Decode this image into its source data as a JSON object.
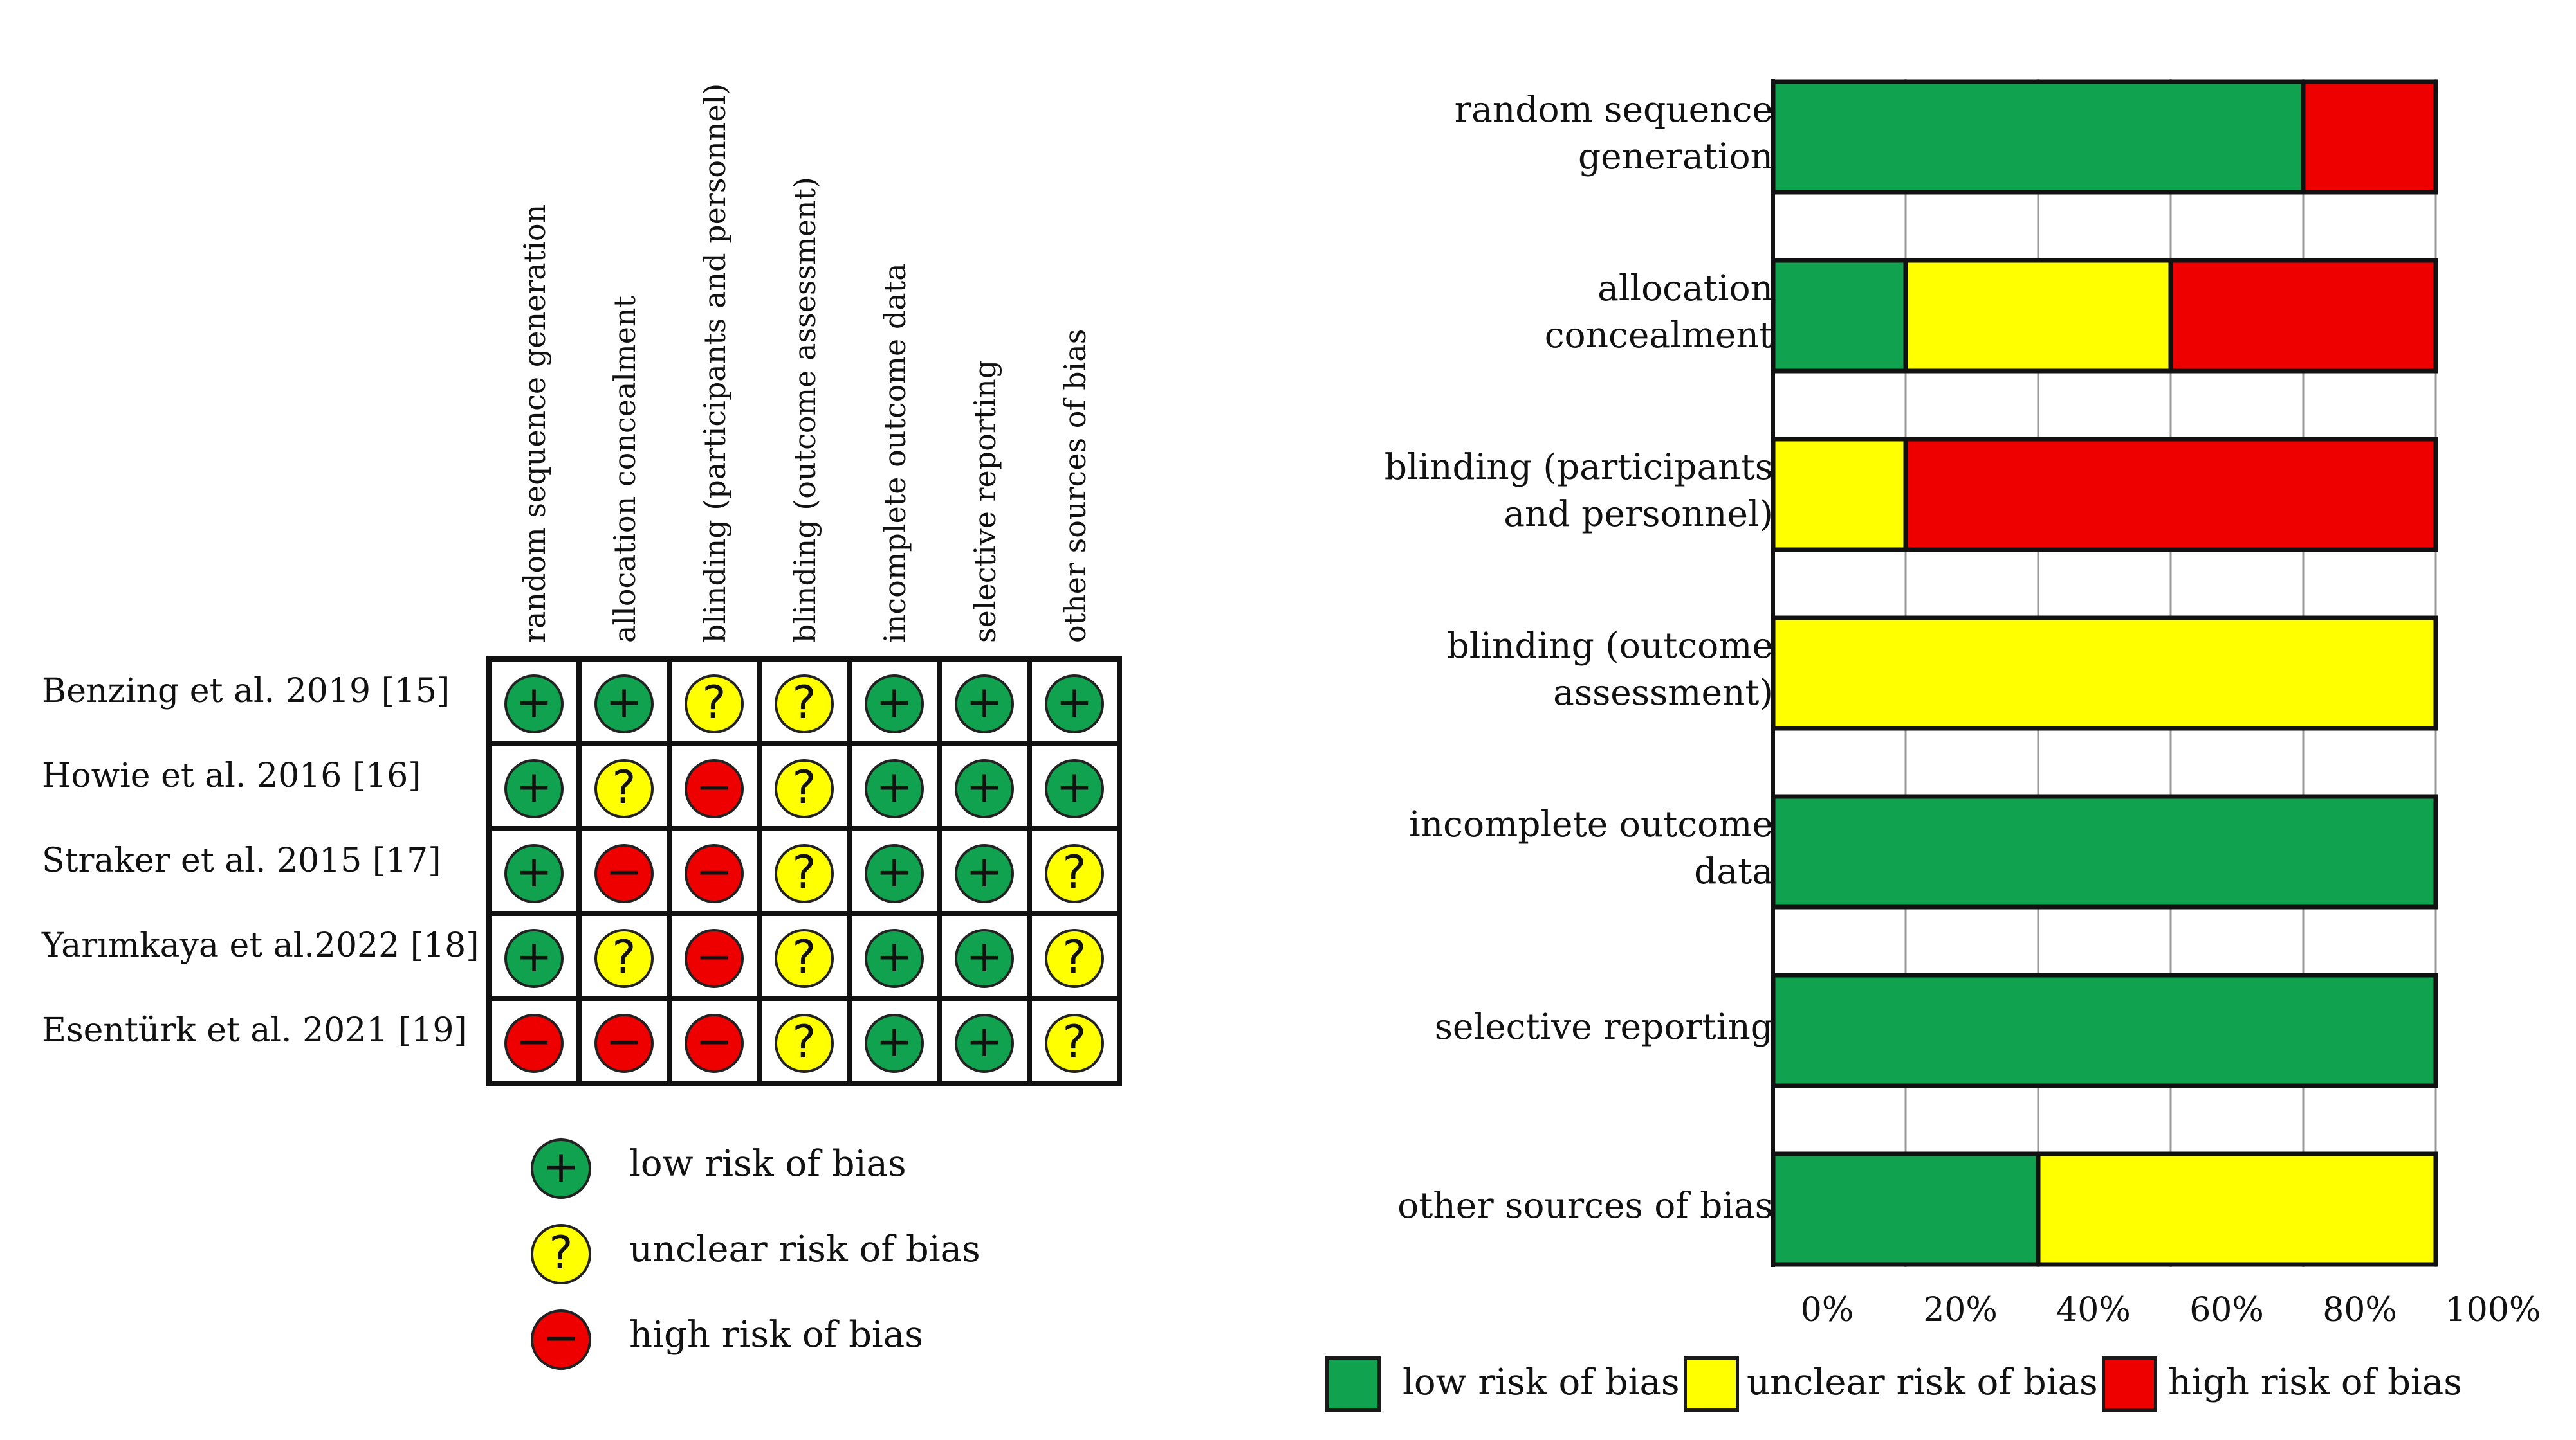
{
  "colors": {
    "low": "#11a24f",
    "unclear": "#ffff00",
    "high": "#ee0000",
    "border": "#111111",
    "grid": "#999999"
  },
  "summary": {
    "studies": [
      {
        "name": "Benzing et al. 2019 [15]",
        "ratings": [
          "low",
          "low",
          "unclear",
          "unclear",
          "low",
          "low",
          "low"
        ]
      },
      {
        "name": "Howie et al. 2016 [16]",
        "ratings": [
          "low",
          "unclear",
          "high",
          "unclear",
          "low",
          "low",
          "low"
        ]
      },
      {
        "name": "Straker et al. 2015 [17]",
        "ratings": [
          "low",
          "high",
          "high",
          "unclear",
          "low",
          "low",
          "unclear"
        ]
      },
      {
        "name": "Yarımkaya et al.2022 [18]",
        "ratings": [
          "low",
          "unclear",
          "high",
          "unclear",
          "low",
          "low",
          "unclear"
        ]
      },
      {
        "name": "Esentürk et al. 2021 [19]",
        "ratings": [
          "high",
          "high",
          "high",
          "unclear",
          "low",
          "low",
          "unclear"
        ]
      }
    ],
    "domains": [
      "random sequence generation",
      "allocation concealment",
      "blinding (participants and personnel)",
      "blinding (outcome assessment)",
      "incomplete outcome data",
      "selective reporting",
      "other sources of bias"
    ],
    "symbols": {
      "low": "+",
      "unclear": "?",
      "high": "−"
    },
    "legend": [
      {
        "key": "low",
        "symbol": "+",
        "label": "low risk of bias"
      },
      {
        "key": "unclear",
        "symbol": "?",
        "label": "unclear risk of bias"
      },
      {
        "key": "high",
        "symbol": "−",
        "label": "high risk of bias"
      }
    ]
  },
  "chart_data": {
    "type": "bar",
    "orientation": "horizontal",
    "stacked": true,
    "categories": [
      [
        "random sequence",
        "generation"
      ],
      [
        "allocation",
        "concealment"
      ],
      [
        "blinding (participants",
        "and personnel)"
      ],
      [
        "blinding (outcome",
        "assessment)"
      ],
      [
        "incomplete outcome",
        "data"
      ],
      [
        "selective reporting"
      ],
      [
        "other sources of bias"
      ]
    ],
    "series": [
      {
        "name": "low risk of bias",
        "key": "low",
        "values": [
          80,
          20,
          0,
          0,
          100,
          100,
          40
        ]
      },
      {
        "name": "unclear risk of bias",
        "key": "unclear",
        "values": [
          0,
          40,
          20,
          100,
          0,
          0,
          60
        ]
      },
      {
        "name": "high risk of bias",
        "key": "high",
        "values": [
          20,
          40,
          80,
          0,
          0,
          0,
          0
        ]
      }
    ],
    "xlim": [
      0,
      100
    ],
    "xticks": [
      "0%",
      "20%",
      "40%",
      "60%",
      "80%",
      "100%"
    ],
    "grid": true,
    "legend_position": "bottom"
  }
}
